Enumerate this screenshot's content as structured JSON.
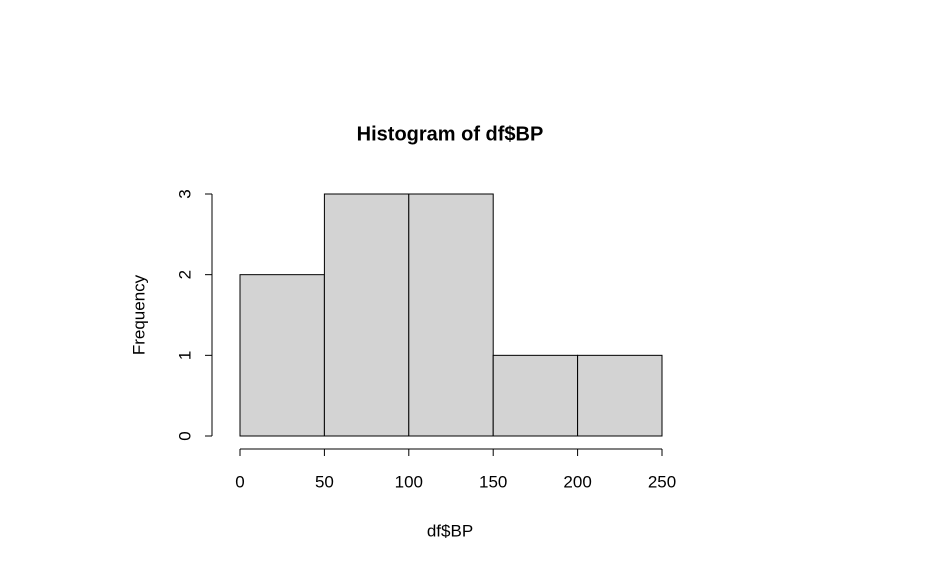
{
  "chart_data": {
    "type": "histogram",
    "title": "Histogram of df$BP",
    "xlabel": "df$BP",
    "ylabel": "Frequency",
    "bins": [
      0,
      50,
      100,
      150,
      200,
      250
    ],
    "values": [
      2,
      3,
      3,
      1,
      1
    ],
    "color": "#d3d3d3",
    "xlim": [
      0,
      250
    ],
    "ylim": [
      0,
      3
    ],
    "xticks": [
      0,
      50,
      100,
      150,
      200,
      250
    ],
    "yticks": [
      0,
      1,
      2,
      3
    ]
  }
}
